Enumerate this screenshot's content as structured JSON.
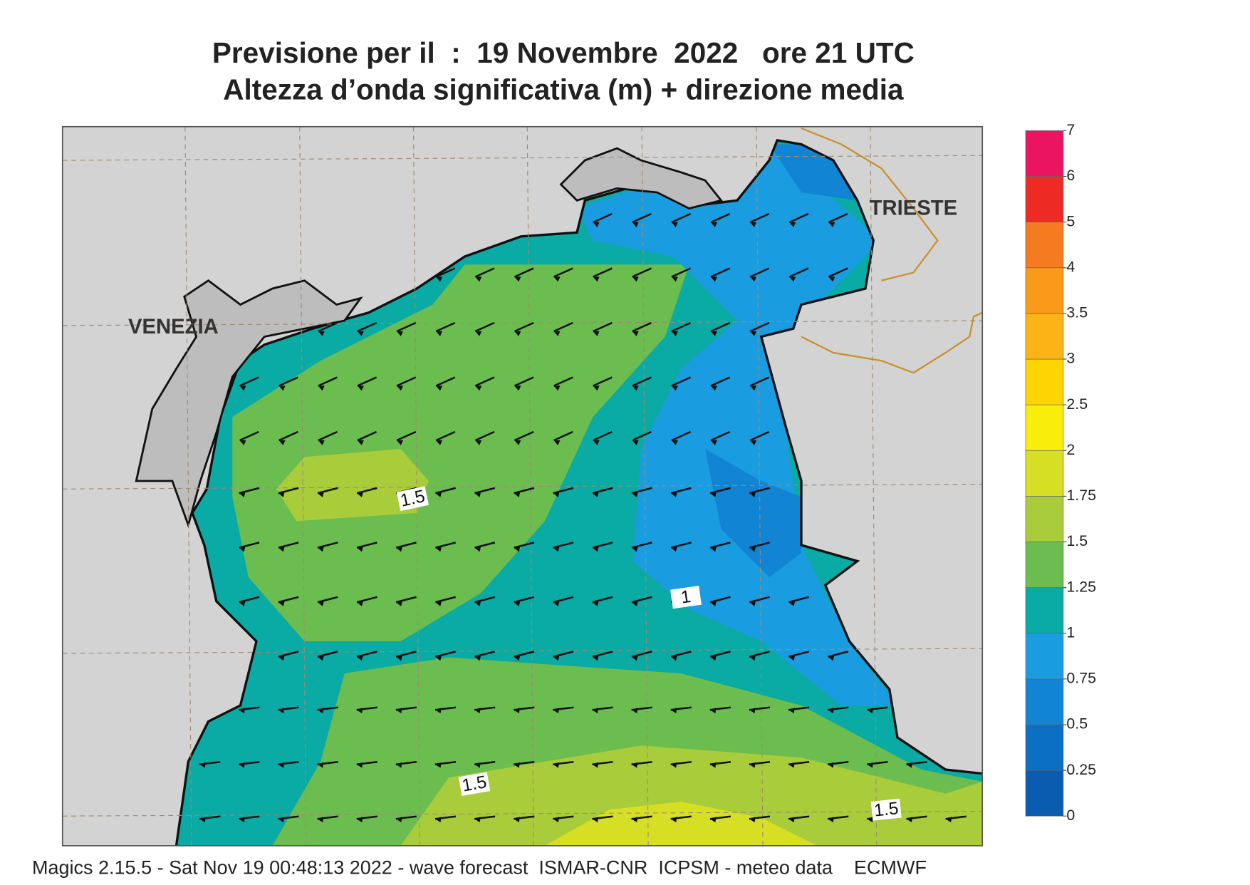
{
  "title": [
    "Previsione per il  :  19 Novembre  2022   ore 21 UTC",
    "Altezza d’onda significativa (m) + direzione media"
  ],
  "map": {
    "labels": {
      "venezia": "VENEZIA",
      "trieste": "TRIESTE"
    },
    "contour_labels": [
      "1.5",
      "1",
      "1.5",
      "1.5"
    ]
  },
  "legend": {
    "ticks": [
      0,
      0.25,
      0.5,
      0.75,
      1,
      1.25,
      1.5,
      1.75,
      2,
      2.5,
      3,
      3.5,
      4,
      5,
      6,
      7
    ],
    "colors": [
      "#0a5cb0",
      "#0b6fc4",
      "#1184d4",
      "#1a9de0",
      "#0aaaa5",
      "#6bbd4f",
      "#a8cc3a",
      "#d6df23",
      "#f9ee0a",
      "#fed500",
      "#fbb315",
      "#f99a1a",
      "#f47b20",
      "#ee2a24",
      "#eb1460"
    ]
  },
  "footer": "Magics 2.15.5 - Sat Nov 19 00:48:13 2022 - wave forecast  ISMAR-CNR  ICPSM - meteo data    ECMWF"
}
